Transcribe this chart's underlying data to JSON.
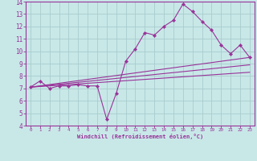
{
  "background_color": "#c8e8e8",
  "grid_color": "#aacccc",
  "line_color": "#993399",
  "marker_color": "#993399",
  "xlabel": "Windchill (Refroidissement éolien,°C)",
  "xlabel_color": "#993399",
  "tick_color": "#993399",
  "spine_color": "#993399",
  "xlim": [
    -0.5,
    23.5
  ],
  "ylim": [
    4,
    14
  ],
  "xticks": [
    0,
    1,
    2,
    3,
    4,
    5,
    6,
    7,
    8,
    9,
    10,
    11,
    12,
    13,
    14,
    15,
    16,
    17,
    18,
    19,
    20,
    21,
    22,
    23
  ],
  "yticks": [
    4,
    5,
    6,
    7,
    8,
    9,
    10,
    11,
    12,
    13,
    14
  ],
  "lines": [
    {
      "x": [
        0,
        1,
        2,
        3,
        4,
        5,
        6,
        7,
        8,
        9,
        10,
        11,
        12,
        13,
        14,
        15,
        16,
        17,
        18,
        19,
        20,
        21,
        22,
        23
      ],
      "y": [
        7.1,
        7.6,
        7.0,
        7.2,
        7.2,
        7.3,
        7.2,
        7.2,
        4.5,
        6.6,
        9.2,
        10.2,
        11.5,
        11.3,
        12.0,
        12.5,
        13.8,
        13.2,
        12.4,
        11.7,
        10.5,
        9.8,
        10.5,
        9.5
      ],
      "has_markers": true
    },
    {
      "x": [
        0,
        23
      ],
      "y": [
        7.1,
        9.5
      ],
      "has_markers": false
    },
    {
      "x": [
        0,
        23
      ],
      "y": [
        7.1,
        8.9
      ],
      "has_markers": false
    },
    {
      "x": [
        0,
        23
      ],
      "y": [
        7.1,
        8.3
      ],
      "has_markers": false
    }
  ]
}
